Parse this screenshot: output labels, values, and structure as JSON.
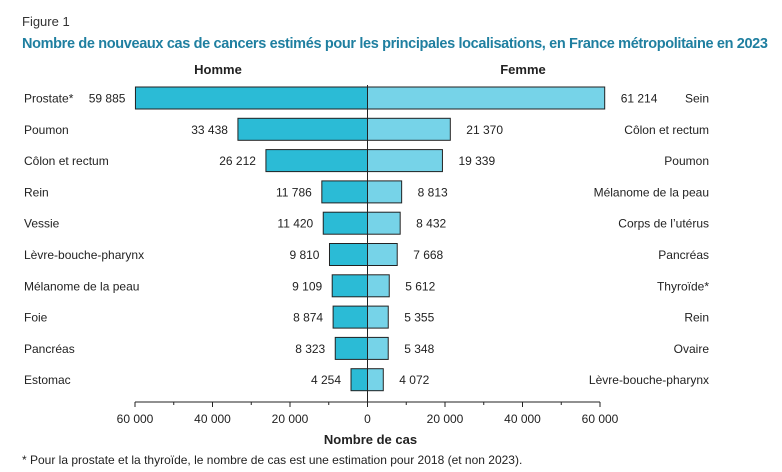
{
  "figure_label": "Figure 1",
  "colors": {
    "male": "#2bbbd6",
    "female": "#76d3e8",
    "title": "#1f7fa0",
    "bar_stroke": "#222222"
  },
  "chart_data": {
    "type": "bar",
    "orientation": "horizontal-butterfly",
    "title": "Nombre de nouveaux cas de cancers estimés pour les principales localisations, en France métropolitaine en 2023",
    "xlabel": "Nombre de cas",
    "xlim": [
      -60000,
      60000
    ],
    "xticks": [
      -60000,
      -40000,
      -20000,
      0,
      20000,
      40000,
      60000
    ],
    "xtick_labels": [
      "60 000",
      "40 000",
      "20 000",
      "0",
      "20 000",
      "40 000",
      "60 000"
    ],
    "series": [
      {
        "name": "Homme",
        "side": "left",
        "categories": [
          "Prostate*",
          "Poumon",
          "Côlon et rectum",
          "Rein",
          "Vessie",
          "Lèvre-bouche-pharynx",
          "Mélanome de la peau",
          "Foie",
          "Pancréas",
          "Estomac"
        ],
        "values": [
          59885,
          33438,
          26212,
          11786,
          11420,
          9810,
          9109,
          8874,
          8323,
          4254
        ],
        "value_labels": [
          "59 885",
          "33 438",
          "26 212",
          "11 786",
          "11 420",
          "9 810",
          "9 109",
          "8 874",
          "8 323",
          "4 254"
        ]
      },
      {
        "name": "Femme",
        "side": "right",
        "categories": [
          "Sein",
          "Côlon et rectum",
          "Poumon",
          "Mélanome de la peau",
          "Corps de l’utérus",
          "Pancréas",
          "Thyroïde*",
          "Rein",
          "Ovaire",
          "Lèvre-bouche-pharynx"
        ],
        "values": [
          61214,
          21370,
          19339,
          8813,
          8432,
          7668,
          5612,
          5355,
          5348,
          4072
        ],
        "value_labels": [
          "61 214",
          "21 370",
          "19 339",
          "8 813",
          "8 432",
          "7 668",
          "5 612",
          "5 355",
          "5 348",
          "4 072"
        ]
      }
    ],
    "footnote": "* Pour la prostate et la thyroïde, le nombre de cas est une estimation pour 2018 (et non 2023)."
  }
}
